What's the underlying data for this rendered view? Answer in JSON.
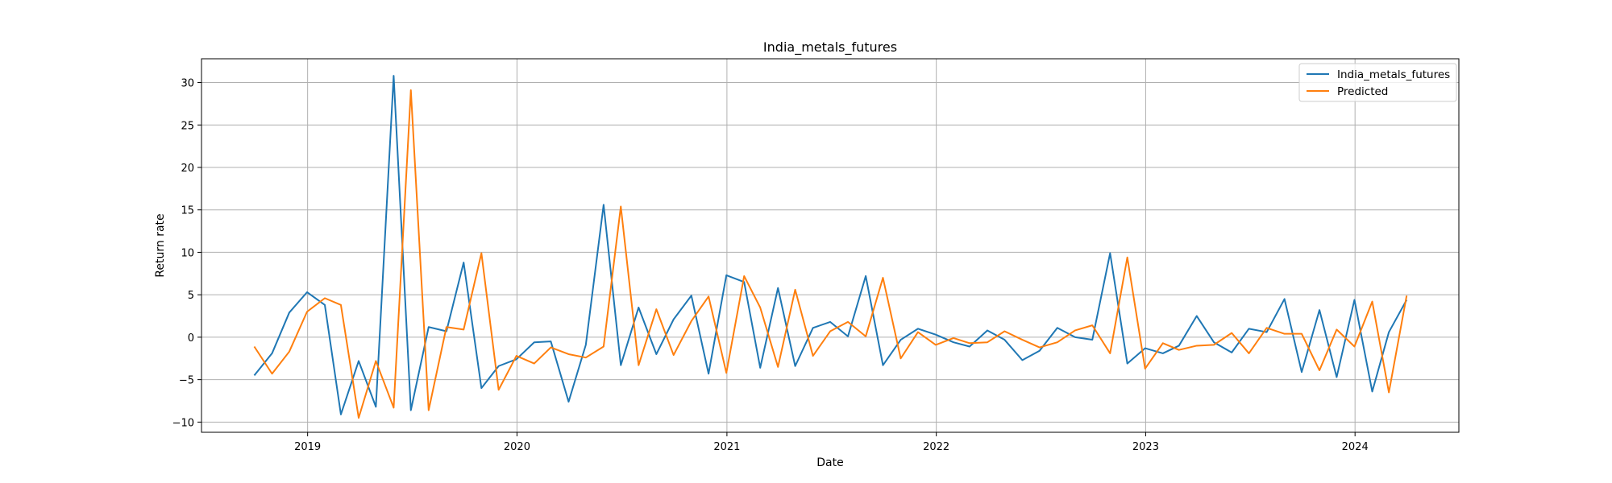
{
  "chart_data": {
    "type": "line",
    "title": "India_metals_futures",
    "xlabel": "Date",
    "ylabel": "Return rate",
    "grid": true,
    "legend_position": "top-right",
    "xlim": [
      "2018-06-30",
      "2024-06-30"
    ],
    "ylim": [
      -11.2,
      32.8
    ],
    "x_ticks": [
      "2019-01-01",
      "2020-01-01",
      "2021-01-01",
      "2022-01-01",
      "2023-01-01",
      "2024-01-01"
    ],
    "x_tick_labels": [
      "2019",
      "2020",
      "2021",
      "2022",
      "2023",
      "2024"
    ],
    "y_ticks": [
      -10,
      -5,
      0,
      5,
      10,
      15,
      20,
      25,
      30
    ],
    "y_tick_labels": [
      "−10",
      "−5",
      "0",
      "5",
      "10",
      "15",
      "20",
      "25",
      "30"
    ],
    "x": [
      "2018-09-30",
      "2018-10-31",
      "2018-11-30",
      "2018-12-31",
      "2019-01-31",
      "2019-02-28",
      "2019-03-31",
      "2019-04-30",
      "2019-05-31",
      "2019-06-30",
      "2019-07-31",
      "2019-08-31",
      "2019-09-30",
      "2019-10-31",
      "2019-11-30",
      "2019-12-31",
      "2020-01-31",
      "2020-02-29",
      "2020-03-31",
      "2020-04-30",
      "2020-05-31",
      "2020-06-30",
      "2020-07-31",
      "2020-08-31",
      "2020-09-30",
      "2020-10-31",
      "2020-11-30",
      "2020-12-31",
      "2021-01-31",
      "2021-02-28",
      "2021-03-31",
      "2021-04-30",
      "2021-05-31",
      "2021-06-30",
      "2021-07-31",
      "2021-08-31",
      "2021-09-30",
      "2021-10-31",
      "2021-11-30",
      "2021-12-31",
      "2022-01-31",
      "2022-02-28",
      "2022-03-31",
      "2022-04-30",
      "2022-05-31",
      "2022-06-30",
      "2022-07-31",
      "2022-08-31",
      "2022-09-30",
      "2022-10-31",
      "2022-11-30",
      "2022-12-31",
      "2023-01-31",
      "2023-02-28",
      "2023-03-31",
      "2023-04-30",
      "2023-05-31",
      "2023-06-30",
      "2023-07-31",
      "2023-08-31",
      "2023-09-30",
      "2023-10-31",
      "2023-11-30",
      "2023-12-31",
      "2024-01-31",
      "2024-02-29",
      "2024-03-31"
    ],
    "series": [
      {
        "name": "India_metals_futures",
        "color": "#1f77b4",
        "values": [
          -4.5,
          -1.9,
          2.9,
          5.3,
          3.8,
          -9.1,
          -2.8,
          -8.2,
          30.8,
          -8.6,
          1.2,
          0.7,
          8.8,
          -6.0,
          -3.4,
          -2.6,
          -0.6,
          -0.5,
          -7.6,
          -0.9,
          15.6,
          -3.3,
          3.5,
          -2.0,
          2.1,
          4.9,
          -4.3,
          7.3,
          6.5,
          -3.6,
          5.8,
          -3.4,
          1.1,
          1.8,
          0.1,
          7.2,
          -3.3,
          -0.3,
          1.0,
          0.3,
          -0.6,
          -1.1,
          0.8,
          -0.3,
          -2.7,
          -1.6,
          1.1,
          0.0,
          -0.3,
          9.9,
          -3.1,
          -1.3,
          -1.9,
          -1.0,
          2.5,
          -0.6,
          -1.8,
          1.0,
          0.6,
          4.5,
          -4.1,
          3.2,
          -4.7,
          4.4,
          -6.4,
          0.6,
          4.4
        ]
      },
      {
        "name": "Predicted",
        "color": "#ff7f0e",
        "values": [
          -1.1,
          -4.3,
          -1.7,
          3.0,
          4.6,
          3.8,
          -9.5,
          -2.8,
          -8.3,
          29.1,
          -8.6,
          1.2,
          0.9,
          9.9,
          -6.2,
          -2.2,
          -3.1,
          -1.2,
          -2.0,
          -2.4,
          -1.1,
          15.4,
          -3.3,
          3.3,
          -2.1,
          1.9,
          4.8,
          -4.2,
          7.2,
          3.5,
          -3.5,
          5.6,
          -2.2,
          0.7,
          1.8,
          0.1,
          7.0,
          -2.5,
          0.6,
          -0.9,
          -0.1,
          -0.7,
          -0.6,
          0.7,
          -0.3,
          -1.2,
          -0.6,
          0.8,
          1.4,
          -1.9,
          9.4,
          -3.7,
          -0.7,
          -1.5,
          -1.0,
          -0.9,
          0.5,
          -1.9,
          1.1,
          0.4,
          0.4,
          -3.9,
          0.9,
          -1.1,
          4.2,
          -6.5,
          4.9
        ]
      }
    ]
  }
}
